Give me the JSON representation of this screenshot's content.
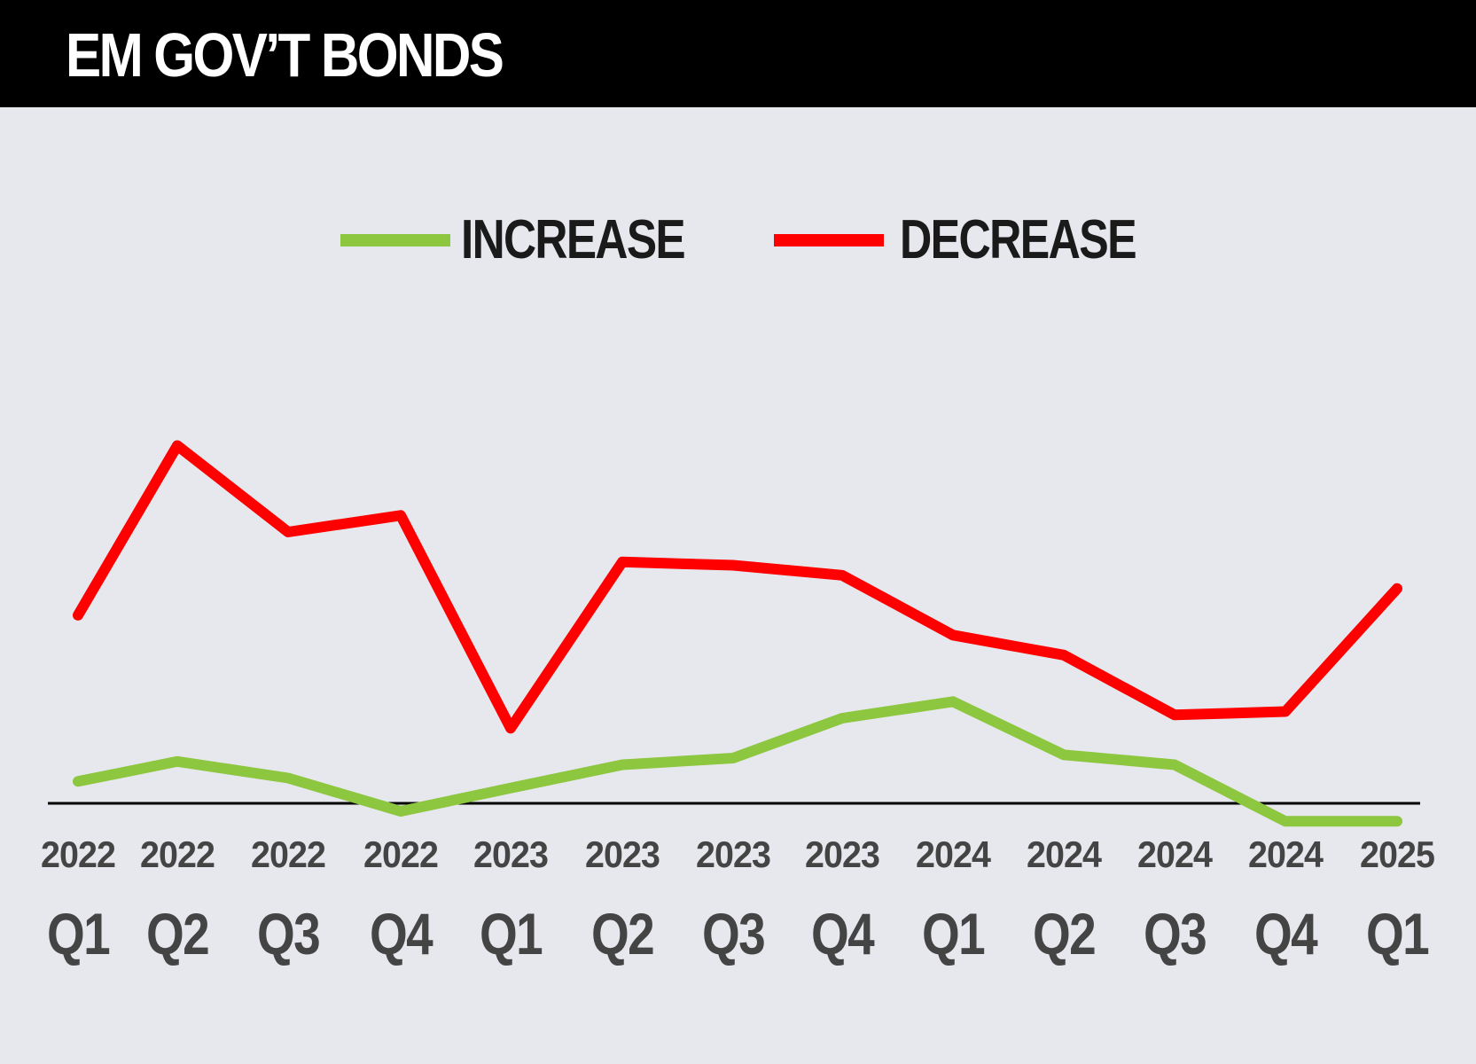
{
  "header": {
    "title": "EM GOV’T BONDS"
  },
  "chart_data": {
    "type": "line",
    "title": "EM GOV’T BONDS",
    "xlabel": "",
    "ylabel": "",
    "grid": false,
    "legend_position": "top-center",
    "x_years": [
      "2022",
      "2022",
      "2022",
      "2022",
      "2023",
      "2023",
      "2023",
      "2023",
      "2024",
      "2024",
      "2024",
      "2024",
      "2025"
    ],
    "x_quarters": [
      "Q1",
      "Q2",
      "Q3",
      "Q4",
      "Q1",
      "Q2",
      "Q3",
      "Q4",
      "Q1",
      "Q2",
      "Q3",
      "Q4",
      "Q1"
    ],
    "ylim": [
      0,
      100
    ],
    "series": [
      {
        "name": "INCREASE",
        "color": "#8dc63f",
        "values": [
          22.5,
          25.5,
          23,
          18,
          21.5,
          25,
          26,
          32,
          34.5,
          26.5,
          25,
          16.5,
          16.5
        ]
      },
      {
        "name": "DECREASE",
        "color": "#ff0000",
        "values": [
          47.5,
          73,
          60,
          62.5,
          30.5,
          55.5,
          55,
          53.5,
          44.5,
          41.5,
          32.5,
          33,
          51.5
        ]
      }
    ]
  }
}
